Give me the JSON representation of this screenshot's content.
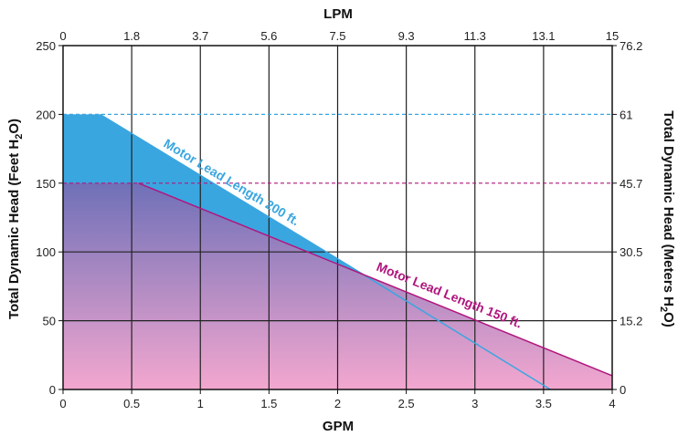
{
  "chart_data": {
    "type": "area",
    "x_axis_bottom": {
      "label": "GPM",
      "ticks": [
        "0",
        "0.5",
        "1",
        "1.5",
        "2",
        "2.5",
        "3",
        "3.5",
        "4"
      ],
      "range": [
        0,
        4
      ]
    },
    "x_axis_top": {
      "label": "LPM",
      "ticks": [
        "0",
        "1.8",
        "3.7",
        "5.6",
        "7.5",
        "9.3",
        "11.3",
        "13.1",
        "15"
      ]
    },
    "y_axis_left": {
      "label_main": "Total Dynamic Head (Feet H",
      "label_sub": "2",
      "label_end": "O)",
      "ticks": [
        "0",
        "50",
        "100",
        "150",
        "200",
        "250"
      ],
      "range": [
        0,
        250
      ]
    },
    "y_axis_right": {
      "label_main": "Total Dynamic Head (Meters H",
      "label_sub": "2",
      "label_end": "O)",
      "ticks": [
        "0",
        "15.2",
        "30.5",
        "45.7",
        "61",
        "76.2"
      ]
    },
    "grid": true,
    "series": [
      {
        "name": "Motor Lead Length 200 ft.",
        "color": "#3aa6e0",
        "points": [
          [
            0,
            200
          ],
          [
            0.27,
            200
          ],
          [
            2.0,
            95
          ],
          [
            3.55,
            0
          ]
        ],
        "reference_line": 200
      },
      {
        "name": "Motor Lead Length 150 ft.",
        "color": "#b0167e",
        "points": [
          [
            0,
            150
          ],
          [
            0.55,
            150
          ],
          [
            4.0,
            10
          ],
          [
            4.0,
            0
          ]
        ],
        "reference_line": 150
      }
    ]
  }
}
